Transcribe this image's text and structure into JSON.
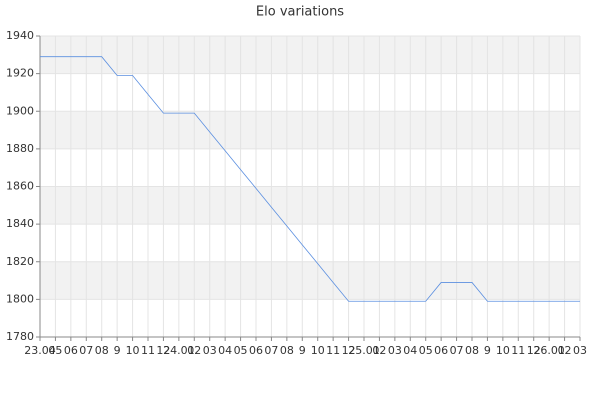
{
  "chart_data": {
    "type": "line",
    "title": "Elo variations",
    "categories": [
      "23.04",
      "05",
      "06",
      "07",
      "08",
      "9",
      "10",
      "11",
      "12",
      "24.01",
      "02",
      "03",
      "04",
      "05",
      "06",
      "07",
      "08",
      "9",
      "10",
      "11",
      "12",
      "25.01",
      "02",
      "03",
      "04",
      "05",
      "06",
      "07",
      "08",
      "9",
      "10",
      "11",
      "12",
      "26.01",
      "02",
      "03"
    ],
    "series": [
      {
        "name": "Elo",
        "color": "#5b8fe0",
        "values": [
          1929,
          1929,
          1929,
          1929,
          1929,
          1919,
          1919,
          1909,
          1899,
          1899,
          1899,
          1889,
          1879,
          1869,
          1859,
          1849,
          1839,
          1829,
          1819,
          1809,
          1799,
          1799,
          1799,
          1799,
          1799,
          1799,
          1809,
          1809,
          1809,
          1799,
          1799,
          1799,
          1799,
          1799,
          1799,
          1799
        ]
      }
    ],
    "ylim": [
      1780,
      1940
    ],
    "yticks": [
      1780,
      1800,
      1820,
      1840,
      1860,
      1880,
      1900,
      1920,
      1940
    ],
    "grid": true
  }
}
